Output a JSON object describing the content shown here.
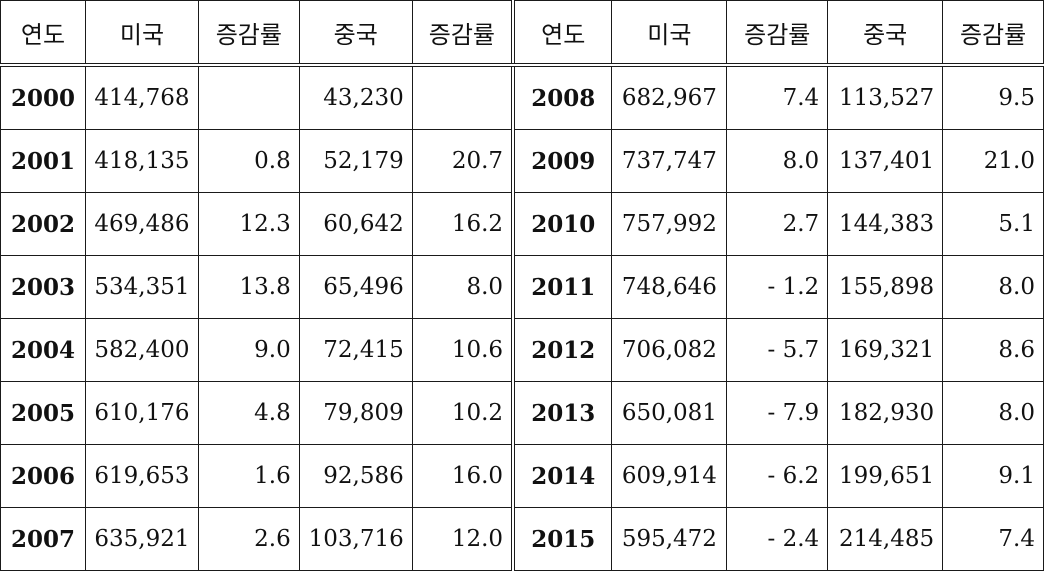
{
  "table": {
    "headers": [
      "연도",
      "미국",
      "증감률",
      "중국",
      "증감률",
      "연도",
      "미국",
      "증감률",
      "중국",
      "증감률"
    ],
    "rows": [
      [
        "2000",
        "414,768",
        "",
        "43,230",
        "",
        "2008",
        "682,967",
        "7.4",
        "113,527",
        "9.5"
      ],
      [
        "2001",
        "418,135",
        "0.8",
        "52,179",
        "20.7",
        "2009",
        "737,747",
        "8.0",
        "137,401",
        "21.0"
      ],
      [
        "2002",
        "469,486",
        "12.3",
        "60,642",
        "16.2",
        "2010",
        "757,992",
        "2.7",
        "144,383",
        "5.1"
      ],
      [
        "2003",
        "534,351",
        "13.8",
        "65,496",
        "8.0",
        "2011",
        "748,646",
        "- 1.2",
        "155,898",
        "8.0"
      ],
      [
        "2004",
        "582,400",
        "9.0",
        "72,415",
        "10.6",
        "2012",
        "706,082",
        "- 5.7",
        "169,321",
        "8.6"
      ],
      [
        "2005",
        "610,176",
        "4.8",
        "79,809",
        "10.2",
        "2013",
        "650,081",
        "- 7.9",
        "182,930",
        "8.0"
      ],
      [
        "2006",
        "619,653",
        "1.6",
        "92,586",
        "16.0",
        "2014",
        "609,914",
        "-  6.2",
        "199,651",
        "9.1"
      ],
      [
        "2007",
        "635,921",
        "2.6",
        "103,716",
        "12.0",
        "2015",
        "595,472",
        "-  2.4",
        "214,485",
        "7.4"
      ]
    ]
  }
}
